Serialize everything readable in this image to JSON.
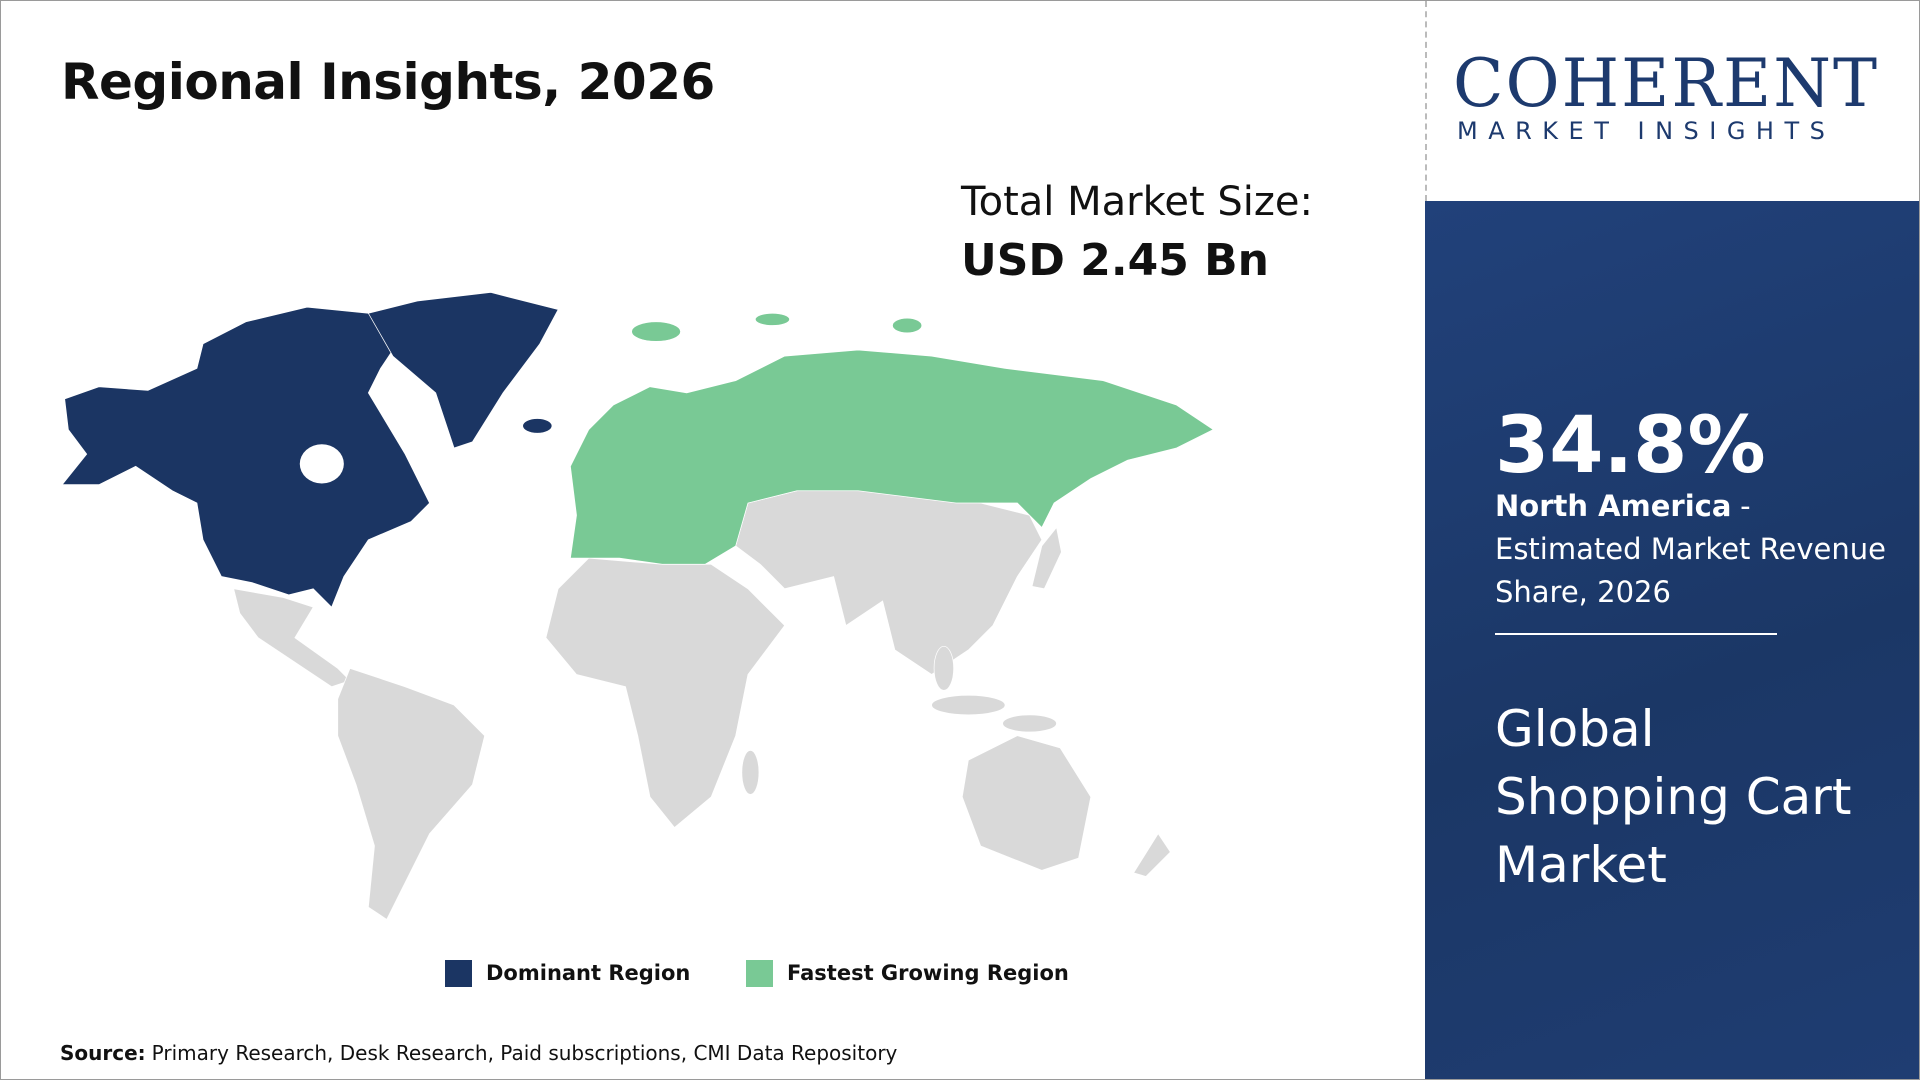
{
  "header": {
    "title": "Regional Insights, 2026"
  },
  "logo": {
    "name": "COHERENT",
    "tagline": "MARKET INSIGHTS"
  },
  "market_size": {
    "label": "Total Market Size:",
    "value": "USD 2.45 Bn"
  },
  "legend": {
    "items": [
      {
        "label": "Dominant Region",
        "color": "#1b3563"
      },
      {
        "label": "Fastest Growing Region",
        "color": "#79c995"
      }
    ]
  },
  "highlight": {
    "share": "34.8%",
    "region": "North America",
    "description": "- Estimated Market Revenue Share, 2026"
  },
  "market_name": "Global Shopping Cart Market",
  "source": {
    "label": "Source:",
    "text": "Primary Research, Desk Research, Paid subscriptions, CMI Data Repository"
  }
}
